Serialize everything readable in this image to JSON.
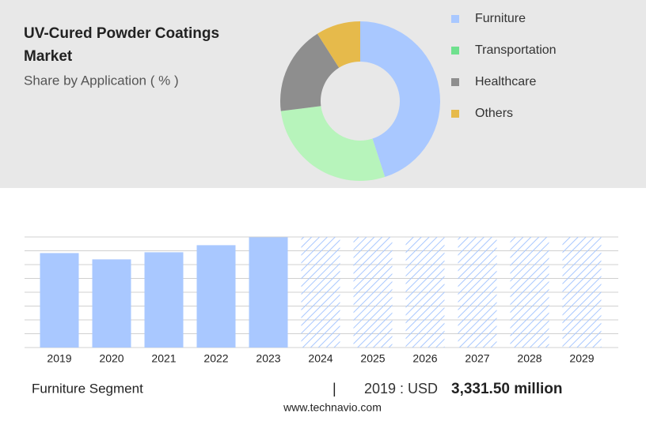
{
  "chart_data": [
    {
      "type": "pie",
      "title": "UV-Cured Powder Coatings Market",
      "subtitle": "Share by Application ( % )",
      "categories": [
        "Furniture",
        "Transportation",
        "Healthcare",
        "Others"
      ],
      "values": [
        45,
        28,
        18,
        9
      ],
      "colors": [
        "#a9c8ff",
        "#b7f4bb",
        "#8e8e8e",
        "#e6ba4b"
      ],
      "legend_colors": [
        "#a9c8ff",
        "#6fe08e",
        "#8e8e8e",
        "#e6ba4b"
      ]
    },
    {
      "type": "bar",
      "categories": [
        "2019",
        "2020",
        "2021",
        "2022",
        "2023",
        "2024",
        "2025",
        "2026",
        "2027",
        "2028",
        "2029"
      ],
      "values": [
        3331.5,
        3110,
        3360,
        3610,
        3890,
        null,
        null,
        null,
        null,
        null,
        null
      ],
      "color": "#a9c8ff",
      "ylim": [
        0,
        3900
      ]
    }
  ],
  "footer": {
    "segment": "Furniture Segment",
    "separator": "|",
    "year_label": "2019 : USD",
    "value_label": "3,331.50 million",
    "site": "www.technavio.com"
  }
}
